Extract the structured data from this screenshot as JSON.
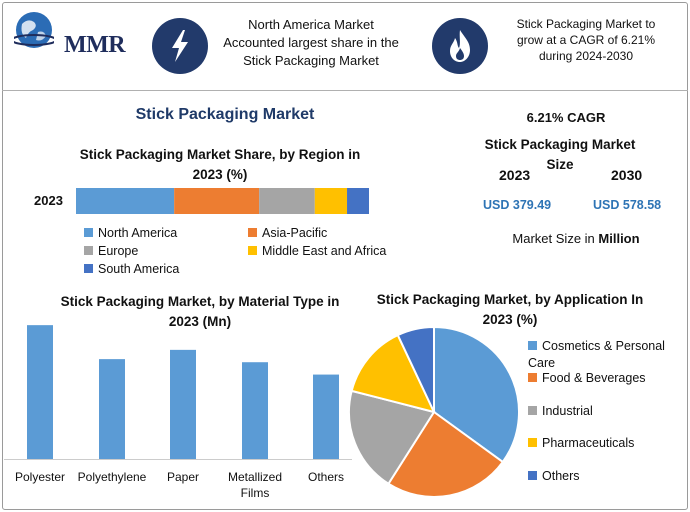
{
  "header": {
    "logo_text": "MMR",
    "box1_text": "North America Market Accounted largest share in the Stick Packaging Market",
    "box2_text": "Stick Packaging Market to grow at a CAGR of 6.21% during 2024-2030",
    "icon1": "lightning-bolt-icon",
    "icon2": "flame-icon"
  },
  "main_title": "Stick Packaging Market",
  "region": {
    "title": "Stick Packaging Market Share, by Region in 2023 (%)",
    "row_label": "2023"
  },
  "summary": {
    "cagr": "6.21% CAGR",
    "size_title": "Stick Packaging Market Size",
    "year1": "2023",
    "year2": "2030",
    "value1": "USD 379.49",
    "value2": "USD 578.58",
    "unit_prefix": "Market Size in ",
    "unit_bold": "Million"
  },
  "material": {
    "title": "Stick Packaging Market, by Material Type in 2023 (Mn)"
  },
  "application": {
    "title": "Stick Packaging Market, by Application In 2023 (%)"
  },
  "colors": {
    "blue": "#5b9bd5",
    "orange": "#ed7d31",
    "gray": "#a5a5a5",
    "yellow": "#ffc000",
    "darkblue": "#4472c4",
    "navy": "#223a6b"
  },
  "chart_data": [
    {
      "type": "bar",
      "orientation": "horizontal-stacked",
      "title": "Stick Packaging Market Share, by Region in 2023 (%)",
      "categories": [
        "2023"
      ],
      "series": [
        {
          "name": "North America",
          "values": [
            33.5
          ],
          "color": "#5b9bd5"
        },
        {
          "name": "Asia-Pacific",
          "values": [
            29
          ],
          "color": "#ed7d31"
        },
        {
          "name": "Europe",
          "values": [
            19
          ],
          "color": "#a5a5a5"
        },
        {
          "name": "Middle East and Africa",
          "values": [
            11
          ],
          "color": "#ffc000"
        },
        {
          "name": "South America",
          "values": [
            7.5
          ],
          "color": "#4472c4"
        }
      ],
      "xlim": [
        0,
        100
      ],
      "grid": false,
      "legend": "bottom"
    },
    {
      "type": "bar",
      "title": "Stick Packaging Market, by Material Type in 2023 (Mn)",
      "categories": [
        "Polyester",
        "Polyethylene",
        "Paper",
        "Metallized Films",
        "Others"
      ],
      "values": [
        130,
        97,
        106,
        94,
        82
      ],
      "ylim": [
        0,
        135
      ],
      "color": "#5b9bd5",
      "grid": false
    },
    {
      "type": "pie",
      "title": "Stick Packaging Market, by Application In 2023 (%)",
      "categories": [
        "Cosmetics & Personal Care",
        "Food & Beverages",
        "Industrial",
        "Pharmaceuticals",
        "Others"
      ],
      "values": [
        35,
        24,
        20,
        14,
        7
      ],
      "colors": [
        "#5b9bd5",
        "#ed7d31",
        "#a5a5a5",
        "#ffc000",
        "#4472c4"
      ],
      "legend": "right"
    }
  ]
}
